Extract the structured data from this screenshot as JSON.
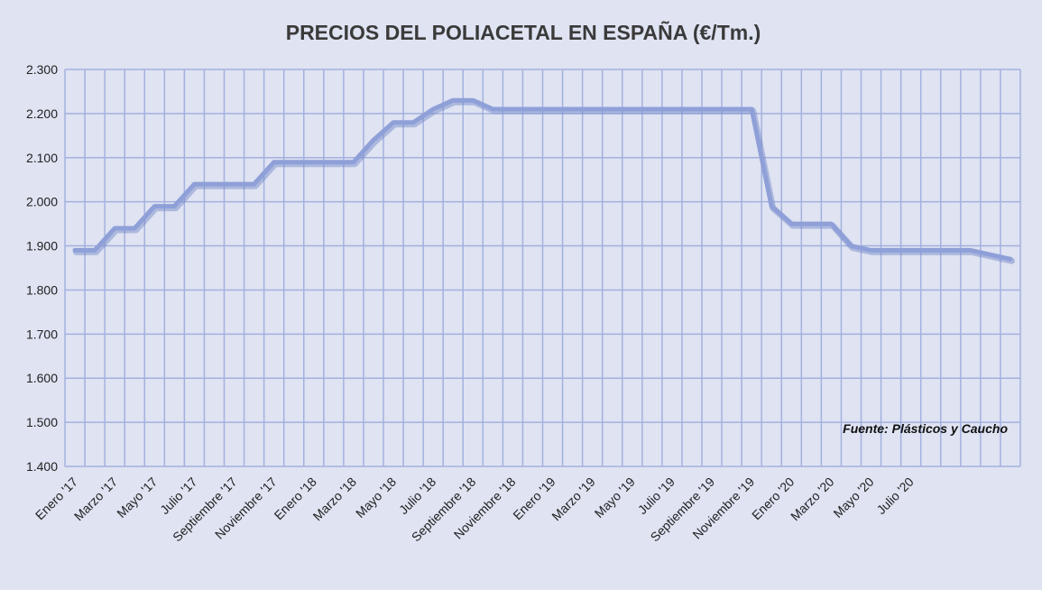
{
  "chart_data": {
    "type": "line",
    "title": "PRECIOS DEL POLIACETAL  EN ESPAÑA (€/Tm.)",
    "xlabel": "",
    "ylabel": "",
    "ylim": [
      1400,
      2300
    ],
    "yticks": [
      1400,
      1500,
      1600,
      1700,
      1800,
      1900,
      2000,
      2100,
      2200,
      2300
    ],
    "ytick_labels": [
      "1.400",
      "1.500",
      "1.600",
      "1.700",
      "1.800",
      "1.900",
      "2.000",
      "2.100",
      "2.200",
      "2.300"
    ],
    "x_labels": [
      "Enero '17",
      "Marzo '17",
      "Mayo '17",
      "Julio '17",
      "Septiembre '17",
      "Noviembre '17",
      "Enero '18",
      "Marzo '18",
      "Mayo '18",
      "Julio '18",
      "Septiembre '18",
      "Noviembre '18",
      "Enero '19",
      "Marzo '19",
      "Mayo '19",
      "Julio '19",
      "Septiembre '19",
      "Noviembre '19",
      "Enero '20",
      "Marzo '20",
      "Mayo '20",
      "Julio '20"
    ],
    "grid": true,
    "legend": "none",
    "line_color": "#8fa0d8",
    "grid_color": "#a3b1de",
    "series": [
      {
        "values": [
          1890,
          1890,
          1940,
          1940,
          1990,
          1990,
          2040,
          2040,
          2040,
          2040,
          2090,
          2090,
          2090,
          2090,
          2090,
          2140,
          2180,
          2180,
          2210,
          2230,
          2230,
          2210,
          2210,
          2210,
          2210,
          2210,
          2210,
          2210,
          2210,
          2210,
          2210,
          2210,
          2210,
          2210,
          2210,
          1990,
          1950,
          1950,
          1950,
          1900,
          1890,
          1890,
          1890,
          1890,
          1890,
          1890,
          1880,
          1870
        ]
      }
    ],
    "annotation": "Fuente: Plásticos y Caucho"
  }
}
